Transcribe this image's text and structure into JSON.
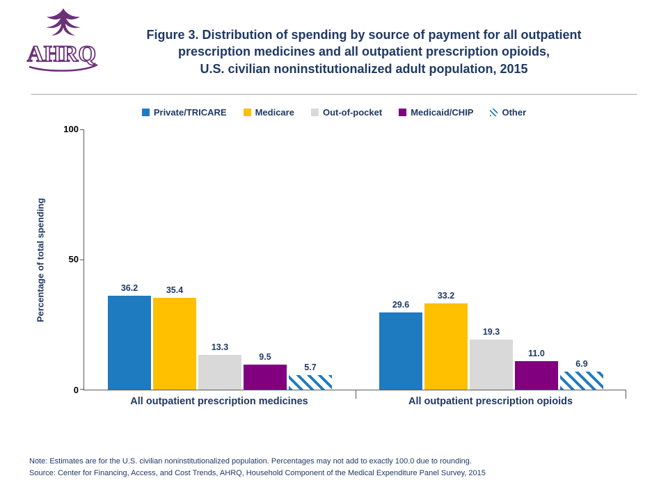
{
  "header": {
    "logo_text": "AHRQ"
  },
  "chart_data": {
    "type": "bar",
    "title": "Figure 3. Distribution of spending by source of payment for all outpatient\nprescription medicines and all outpatient prescription opioids,\nU.S. civilian noninstitutionalized adult population, 2015",
    "ylabel": "Percentage of total spending",
    "xlabel": "",
    "ylim": [
      0,
      100
    ],
    "ytick_labels": [
      "100",
      "50",
      "0"
    ],
    "grid": false,
    "legend_position": "top",
    "categories": [
      "All outpatient prescription medicines",
      "All outpatient prescription opioids"
    ],
    "series": [
      {
        "name": "Private/TRICARE",
        "color": "#1F7BC0",
        "pattern": "solid",
        "values": [
          36.2,
          29.6
        ],
        "labels": [
          "36.2",
          "29.6"
        ]
      },
      {
        "name": "Medicare",
        "color": "#FFC000",
        "pattern": "solid",
        "values": [
          35.4,
          33.2
        ],
        "labels": [
          "35.4",
          "33.2"
        ]
      },
      {
        "name": "Out-of-pocket",
        "color": "#D9D9D9",
        "pattern": "solid",
        "values": [
          13.3,
          19.3
        ],
        "labels": [
          "13.3",
          "19.3"
        ]
      },
      {
        "name": "Medicaid/CHIP",
        "color": "#800080",
        "pattern": "solid",
        "values": [
          9.5,
          11.0
        ],
        "labels": [
          "9.5",
          "11.0"
        ]
      },
      {
        "name": "Other",
        "color": "#1F7BC0",
        "pattern": "hatch",
        "values": [
          5.7,
          6.9
        ],
        "labels": [
          "5.7",
          "6.9"
        ]
      }
    ]
  },
  "footer": {
    "note": "Note: Estimates are for the U.S. civilian noninstitutionalized population. Percentages may not add to exactly 100.0 due to rounding.",
    "source": "Source: Center for Financing, Access, and Cost Trends, AHRQ, Household Component of the Medical Expenditure Panel Survey, 2015"
  },
  "colors": {
    "title_navy": "#1F3864",
    "axis_gray": "#595959",
    "logo_purple": "#6B3078"
  }
}
